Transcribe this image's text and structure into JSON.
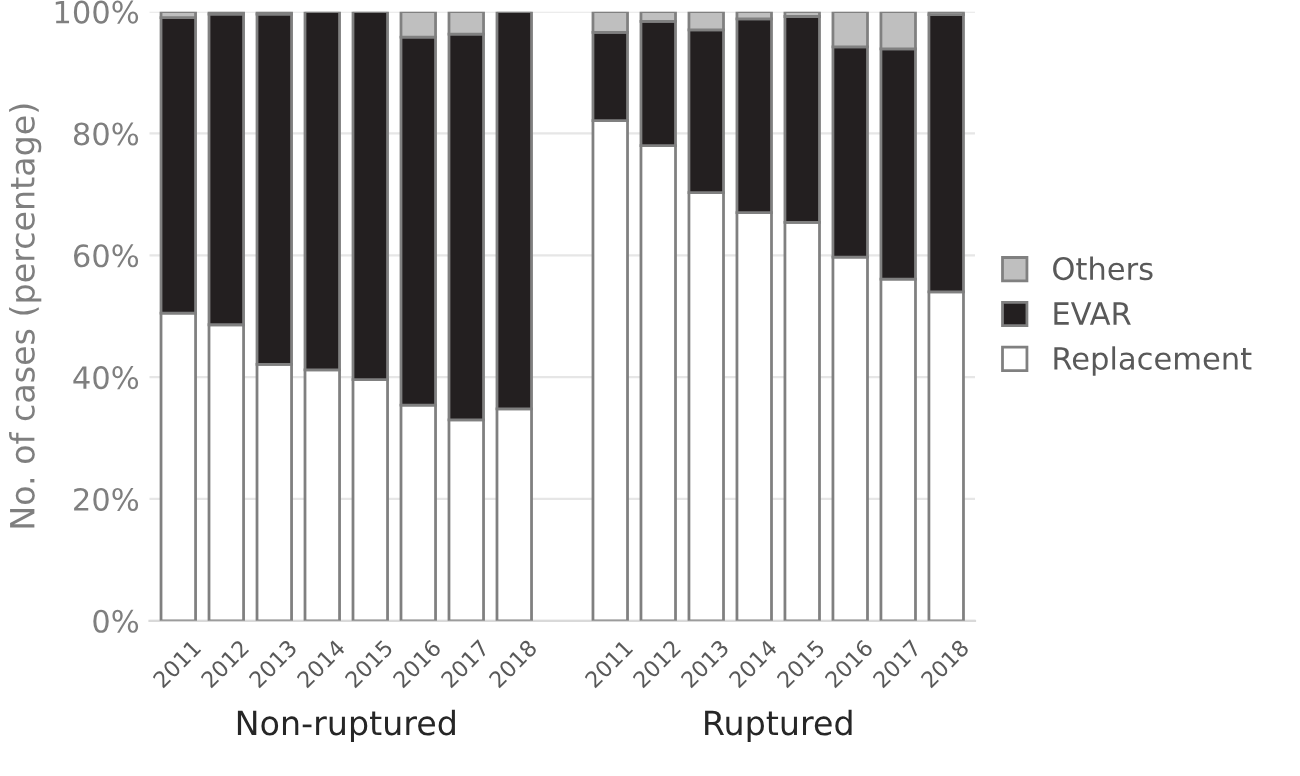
{
  "chart_data": {
    "type": "bar",
    "stacked": true,
    "ylabel": "No. of cases (percentage)",
    "categories": [
      "2011",
      "2012",
      "2013",
      "2014",
      "2015",
      "2016",
      "2017",
      "2018",
      null,
      "2011",
      "2012",
      "2013",
      "2014",
      "2015",
      "2016",
      "2017",
      "2018"
    ],
    "series": [
      {
        "name": "Replacement",
        "color": "#ffffff",
        "values": [
          50.5,
          48.6,
          42.1,
          41.2,
          39.6,
          35.4,
          33.0,
          34.8,
          null,
          82.1,
          78.0,
          70.3,
          67.0,
          65.4,
          59.7,
          56.1,
          54.0
        ]
      },
      {
        "name": "EVAR",
        "color": "#231f20",
        "values": [
          48.5,
          51.0,
          57.5,
          58.8,
          60.4,
          60.4,
          63.3,
          65.2,
          null,
          14.5,
          20.4,
          26.7,
          31.8,
          33.8,
          34.5,
          37.8,
          45.5
        ]
      },
      {
        "name": "Others",
        "color": "#bfbfbf",
        "values": [
          1.0,
          0.4,
          0.4,
          0,
          0,
          4.2,
          3.7,
          0,
          null,
          3.4,
          1.6,
          3.0,
          1.2,
          0.8,
          5.8,
          6.1,
          0.5
        ]
      }
    ],
    "ylim": [
      0,
      100
    ],
    "yticks": [
      {
        "value": 0,
        "label": "0%"
      },
      {
        "value": 20,
        "label": "20%"
      },
      {
        "value": 40,
        "label": "40%"
      },
      {
        "value": 60,
        "label": "60%"
      },
      {
        "value": 80,
        "label": "80%"
      },
      {
        "value": 100,
        "label": "100%"
      }
    ],
    "grid": "y",
    "legend": "right",
    "annotations": [
      "Non-ruptured",
      "Ruptured"
    ]
  }
}
